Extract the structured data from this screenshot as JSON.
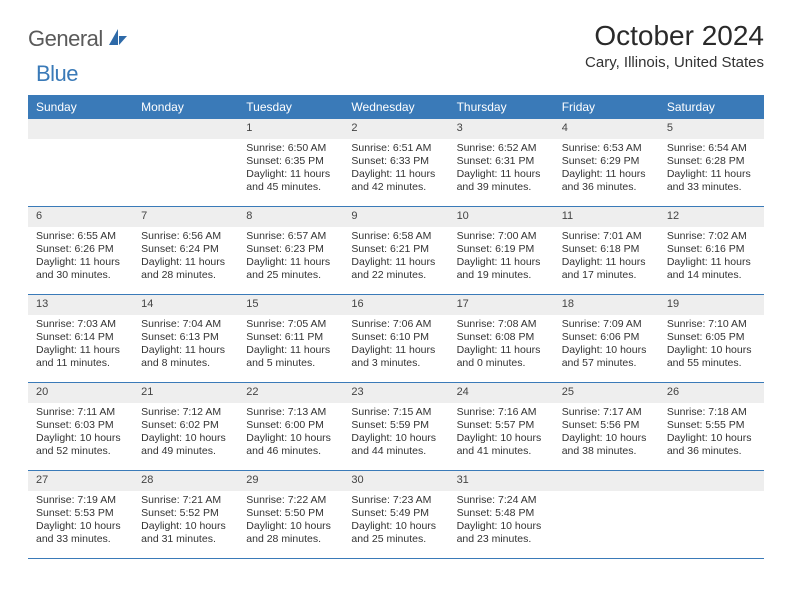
{
  "brand": {
    "general": "General",
    "blue": "Blue"
  },
  "title": "October 2024",
  "location": "Cary, Illinois, United States",
  "colors": {
    "header_bg": "#3a7ab8",
    "header_text": "#ffffff",
    "daynum_bg": "#eeeeee",
    "border": "#3a7ab8",
    "text": "#333333",
    "background": "#ffffff"
  },
  "dayHeaders": [
    "Sunday",
    "Monday",
    "Tuesday",
    "Wednesday",
    "Thursday",
    "Friday",
    "Saturday"
  ],
  "grid": {
    "leadingBlanks": 2,
    "days": [
      {
        "n": 1,
        "sr": "6:50 AM",
        "ss": "6:35 PM",
        "dl": "11 hours and 45 minutes."
      },
      {
        "n": 2,
        "sr": "6:51 AM",
        "ss": "6:33 PM",
        "dl": "11 hours and 42 minutes."
      },
      {
        "n": 3,
        "sr": "6:52 AM",
        "ss": "6:31 PM",
        "dl": "11 hours and 39 minutes."
      },
      {
        "n": 4,
        "sr": "6:53 AM",
        "ss": "6:29 PM",
        "dl": "11 hours and 36 minutes."
      },
      {
        "n": 5,
        "sr": "6:54 AM",
        "ss": "6:28 PM",
        "dl": "11 hours and 33 minutes."
      },
      {
        "n": 6,
        "sr": "6:55 AM",
        "ss": "6:26 PM",
        "dl": "11 hours and 30 minutes."
      },
      {
        "n": 7,
        "sr": "6:56 AM",
        "ss": "6:24 PM",
        "dl": "11 hours and 28 minutes."
      },
      {
        "n": 8,
        "sr": "6:57 AM",
        "ss": "6:23 PM",
        "dl": "11 hours and 25 minutes."
      },
      {
        "n": 9,
        "sr": "6:58 AM",
        "ss": "6:21 PM",
        "dl": "11 hours and 22 minutes."
      },
      {
        "n": 10,
        "sr": "7:00 AM",
        "ss": "6:19 PM",
        "dl": "11 hours and 19 minutes."
      },
      {
        "n": 11,
        "sr": "7:01 AM",
        "ss": "6:18 PM",
        "dl": "11 hours and 17 minutes."
      },
      {
        "n": 12,
        "sr": "7:02 AM",
        "ss": "6:16 PM",
        "dl": "11 hours and 14 minutes."
      },
      {
        "n": 13,
        "sr": "7:03 AM",
        "ss": "6:14 PM",
        "dl": "11 hours and 11 minutes."
      },
      {
        "n": 14,
        "sr": "7:04 AM",
        "ss": "6:13 PM",
        "dl": "11 hours and 8 minutes."
      },
      {
        "n": 15,
        "sr": "7:05 AM",
        "ss": "6:11 PM",
        "dl": "11 hours and 5 minutes."
      },
      {
        "n": 16,
        "sr": "7:06 AM",
        "ss": "6:10 PM",
        "dl": "11 hours and 3 minutes."
      },
      {
        "n": 17,
        "sr": "7:08 AM",
        "ss": "6:08 PM",
        "dl": "11 hours and 0 minutes."
      },
      {
        "n": 18,
        "sr": "7:09 AM",
        "ss": "6:06 PM",
        "dl": "10 hours and 57 minutes."
      },
      {
        "n": 19,
        "sr": "7:10 AM",
        "ss": "6:05 PM",
        "dl": "10 hours and 55 minutes."
      },
      {
        "n": 20,
        "sr": "7:11 AM",
        "ss": "6:03 PM",
        "dl": "10 hours and 52 minutes."
      },
      {
        "n": 21,
        "sr": "7:12 AM",
        "ss": "6:02 PM",
        "dl": "10 hours and 49 minutes."
      },
      {
        "n": 22,
        "sr": "7:13 AM",
        "ss": "6:00 PM",
        "dl": "10 hours and 46 minutes."
      },
      {
        "n": 23,
        "sr": "7:15 AM",
        "ss": "5:59 PM",
        "dl": "10 hours and 44 minutes."
      },
      {
        "n": 24,
        "sr": "7:16 AM",
        "ss": "5:57 PM",
        "dl": "10 hours and 41 minutes."
      },
      {
        "n": 25,
        "sr": "7:17 AM",
        "ss": "5:56 PM",
        "dl": "10 hours and 38 minutes."
      },
      {
        "n": 26,
        "sr": "7:18 AM",
        "ss": "5:55 PM",
        "dl": "10 hours and 36 minutes."
      },
      {
        "n": 27,
        "sr": "7:19 AM",
        "ss": "5:53 PM",
        "dl": "10 hours and 33 minutes."
      },
      {
        "n": 28,
        "sr": "7:21 AM",
        "ss": "5:52 PM",
        "dl": "10 hours and 31 minutes."
      },
      {
        "n": 29,
        "sr": "7:22 AM",
        "ss": "5:50 PM",
        "dl": "10 hours and 28 minutes."
      },
      {
        "n": 30,
        "sr": "7:23 AM",
        "ss": "5:49 PM",
        "dl": "10 hours and 25 minutes."
      },
      {
        "n": 31,
        "sr": "7:24 AM",
        "ss": "5:48 PM",
        "dl": "10 hours and 23 minutes."
      }
    ]
  },
  "labels": {
    "sunrise": "Sunrise:",
    "sunset": "Sunset:",
    "daylight": "Daylight:"
  }
}
